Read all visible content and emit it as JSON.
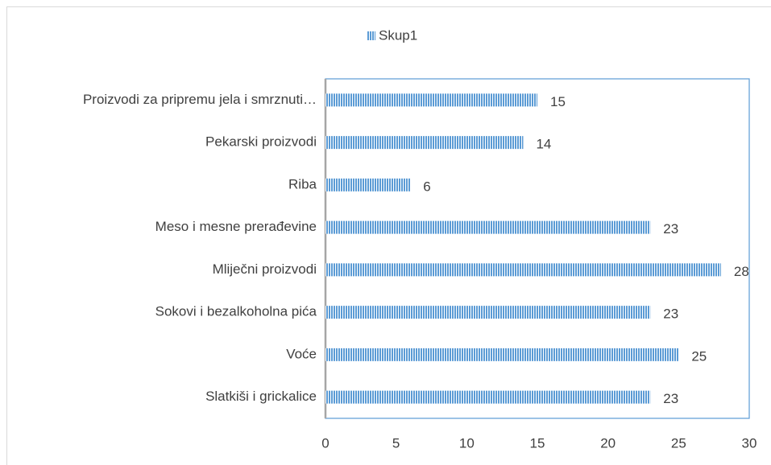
{
  "chart_data": {
    "type": "bar",
    "orientation": "horizontal",
    "categories": [
      "Proizvodi za pripremu jela i smrznuti…",
      "Pekarski proizvodi",
      "Riba",
      "Meso i mesne prerađevine",
      "Mliječni proizvodi",
      "Sokovi i bezalkoholna pića",
      "Voće",
      "Slatkiši i grickalice"
    ],
    "series": [
      {
        "name": "Skup1",
        "color": "#5b9bd5",
        "values": [
          15,
          14,
          6,
          23,
          28,
          23,
          25,
          23
        ]
      }
    ],
    "xlim": [
      0,
      30
    ],
    "xticks": [
      0,
      5,
      10,
      15,
      20,
      25,
      30
    ],
    "legend": "top"
  }
}
